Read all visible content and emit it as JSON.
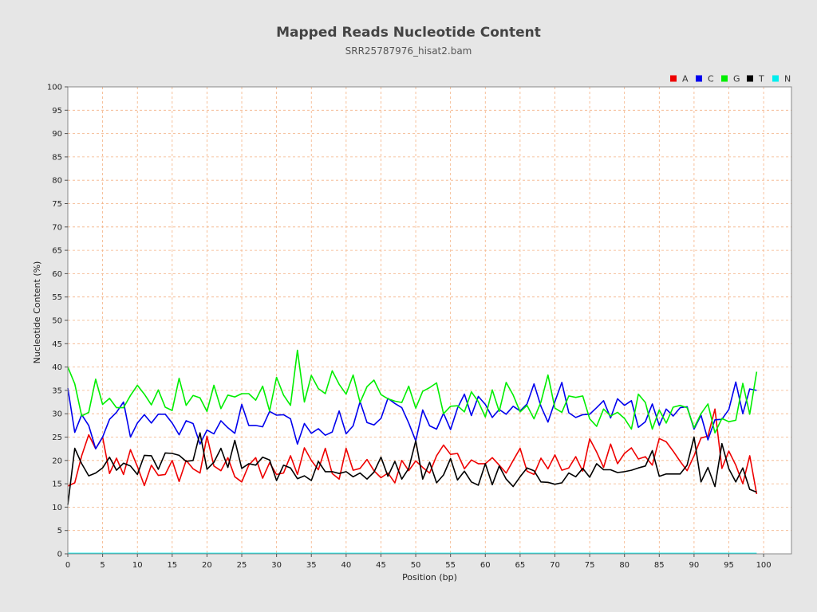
{
  "chart_data": {
    "type": "line",
    "title": "Mapped Reads Nucleotide Content",
    "subtitle": "SRR25787976_hisat2.bam",
    "xlabel": "Position (bp)",
    "ylabel": "Nucleotide Content (%)",
    "xlim": [
      0,
      104
    ],
    "ylim": [
      0,
      100
    ],
    "x_ticks": [
      0,
      5,
      10,
      15,
      20,
      25,
      30,
      35,
      40,
      45,
      50,
      55,
      60,
      65,
      70,
      75,
      80,
      85,
      90,
      95,
      100
    ],
    "y_ticks": [
      0,
      5,
      10,
      15,
      20,
      25,
      30,
      35,
      40,
      45,
      50,
      55,
      60,
      65,
      70,
      75,
      80,
      85,
      90,
      95,
      100
    ],
    "grid": true,
    "legend_position": "top-right",
    "x": [
      0,
      1,
      2,
      3,
      4,
      5,
      6,
      7,
      8,
      9,
      10,
      11,
      12,
      13,
      14,
      15,
      16,
      17,
      18,
      19,
      20,
      21,
      22,
      23,
      24,
      25,
      26,
      27,
      28,
      29,
      30,
      31,
      32,
      33,
      34,
      35,
      36,
      37,
      38,
      39,
      40,
      41,
      42,
      43,
      44,
      45,
      46,
      47,
      48,
      49,
      50,
      51,
      52,
      53,
      54,
      55,
      56,
      57,
      58,
      59,
      60,
      61,
      62,
      63,
      64,
      65,
      66,
      67,
      68,
      69,
      70,
      71,
      72,
      73,
      74,
      75,
      76,
      77,
      78,
      79,
      80,
      81,
      82,
      83,
      84,
      85,
      86,
      87,
      88,
      89,
      90,
      91,
      92,
      93,
      94,
      95,
      96,
      97,
      98,
      99
    ],
    "series": [
      {
        "name": "A",
        "color": "#ee0000",
        "values": [
          14.5,
          15.2,
          21.0,
          25.5,
          22.5,
          25.0,
          17.2,
          20.5,
          17.0,
          22.3,
          18.7,
          14.6,
          19.0,
          16.8,
          17.0,
          20.0,
          15.5,
          20.0,
          18.2,
          17.3,
          25.2,
          18.8,
          17.8,
          20.6,
          16.5,
          15.4,
          19.0,
          20.6,
          16.2,
          19.5,
          17.0,
          17.3,
          21.0,
          17.0,
          22.7,
          20.0,
          18.0,
          22.6,
          17.2,
          16.0,
          22.6,
          17.9,
          18.3,
          20.2,
          17.8,
          16.3,
          17.3,
          15.2,
          20.0,
          17.8,
          19.9,
          18.5,
          17.3,
          21.0,
          23.3,
          21.3,
          21.5,
          18.2,
          20.1,
          19.3,
          19.3,
          20.6,
          19.0,
          17.3,
          20.0,
          22.6,
          17.7,
          17.0,
          20.5,
          18.2,
          21.2,
          17.9,
          18.4,
          20.8,
          17.7,
          24.6,
          21.8,
          18.5,
          23.5,
          19.3,
          21.5,
          22.7,
          20.3,
          20.8,
          19.0,
          24.7,
          24.0,
          22.0,
          19.8,
          17.8,
          21.0,
          24.8,
          25.2,
          31.0,
          18.3,
          22.0,
          19.0,
          15.0,
          21.0,
          12.8
        ]
      },
      {
        "name": "C",
        "color": "#0000ee",
        "values": [
          35.5,
          26.0,
          29.8,
          27.5,
          22.5,
          25.0,
          28.8,
          30.3,
          32.5,
          25.0,
          28.0,
          29.8,
          28.0,
          29.9,
          29.9,
          28.0,
          25.5,
          28.5,
          27.9,
          23.5,
          26.5,
          25.7,
          28.5,
          27.0,
          25.8,
          32.0,
          27.5,
          27.5,
          27.2,
          30.5,
          29.7,
          29.8,
          28.9,
          23.5,
          27.9,
          25.8,
          26.8,
          25.4,
          26.1,
          30.6,
          25.7,
          27.4,
          32.6,
          28.1,
          27.6,
          29.0,
          33.3,
          32.2,
          31.3,
          28.0,
          24.2,
          30.8,
          27.4,
          26.7,
          30.1,
          26.6,
          31.2,
          34.2,
          29.6,
          33.7,
          32.0,
          29.2,
          30.9,
          29.9,
          31.6,
          30.6,
          32.1,
          36.4,
          31.6,
          28.2,
          32.6,
          36.7,
          30.2,
          29.2,
          29.8,
          29.9,
          31.3,
          32.8,
          29.1,
          33.2,
          31.8,
          32.8,
          27.1,
          28.3,
          32.1,
          27.5,
          31.0,
          29.5,
          31.3,
          31.5,
          26.7,
          29.7,
          24.4,
          28.7,
          28.8,
          30.9,
          36.8,
          30.0,
          35.3,
          35.0
        ]
      },
      {
        "name": "G",
        "color": "#00ee00",
        "values": [
          40.0,
          36.4,
          29.5,
          30.3,
          37.4,
          32.0,
          33.3,
          31.3,
          31.3,
          33.9,
          36.1,
          34.2,
          31.9,
          35.1,
          31.4,
          30.7,
          37.6,
          31.8,
          33.9,
          33.4,
          30.5,
          36.1,
          31.1,
          34.0,
          33.6,
          34.3,
          34.3,
          32.9,
          35.9,
          30.6,
          37.8,
          34.0,
          31.8,
          43.6,
          32.5,
          38.2,
          35.4,
          34.3,
          39.2,
          36.3,
          34.2,
          38.3,
          32.4,
          35.8,
          37.2,
          34.1,
          33.2,
          32.7,
          32.4,
          35.9,
          31.2,
          34.8,
          35.6,
          36.6,
          30.0,
          31.6,
          31.7,
          30.4,
          34.7,
          32.6,
          29.3,
          35.1,
          30.5,
          36.7,
          34.0,
          30.4,
          31.8,
          28.9,
          32.5,
          38.3,
          31.2,
          30.3,
          33.8,
          33.5,
          33.8,
          28.9,
          27.3,
          31.0,
          29.5,
          30.3,
          29.0,
          26.7,
          34.2,
          32.4,
          26.7,
          30.8,
          28.0,
          31.4,
          31.8,
          31.3,
          27.0,
          30.0,
          32.1,
          25.9,
          29.0,
          28.3,
          28.6,
          36.5,
          29.9,
          39.0
        ]
      },
      {
        "name": "T",
        "color": "#000000",
        "values": [
          10.5,
          22.6,
          19.3,
          16.7,
          17.3,
          18.4,
          20.7,
          17.9,
          19.4,
          18.8,
          17.0,
          21.1,
          21.0,
          18.1,
          21.6,
          21.5,
          21.1,
          19.8,
          20.0,
          25.9,
          18.1,
          19.6,
          22.6,
          18.5,
          24.3,
          18.3,
          19.3,
          19.0,
          20.7,
          20.1,
          15.7,
          19.0,
          18.4,
          16.1,
          16.7,
          15.7,
          19.8,
          17.6,
          17.6,
          17.2,
          17.6,
          16.5,
          17.3,
          16.0,
          17.5,
          20.7,
          16.6,
          19.8,
          16.0,
          18.3,
          24.2,
          16.0,
          19.6,
          15.2,
          16.9,
          20.4,
          15.8,
          17.7,
          15.4,
          14.7,
          19.3,
          14.8,
          18.8,
          16.0,
          14.4,
          16.5,
          18.4,
          17.8,
          15.4,
          15.3,
          14.9,
          15.2,
          17.3,
          16.5,
          18.3,
          16.4,
          19.3,
          18.0,
          18.0,
          17.4,
          17.6,
          17.9,
          18.4,
          18.8,
          22.1,
          16.6,
          17.1,
          17.1,
          17.1,
          19.0,
          25.0,
          15.4,
          18.5,
          14.4,
          23.6,
          18.2,
          15.4,
          18.4,
          13.8,
          13.2
        ]
      },
      {
        "name": "N",
        "color": "#00eeee",
        "values": [
          0.1,
          0.1,
          0.1,
          0.1,
          0.1,
          0.1,
          0.1,
          0.1,
          0.1,
          0.1,
          0.1,
          0.1,
          0.1,
          0.1,
          0.1,
          0.1,
          0.1,
          0.1,
          0.1,
          0.1,
          0.1,
          0.1,
          0.1,
          0.1,
          0.1,
          0.1,
          0.1,
          0.1,
          0.1,
          0.1,
          0.1,
          0.1,
          0.1,
          0.1,
          0.1,
          0.1,
          0.1,
          0.1,
          0.1,
          0.1,
          0.1,
          0.1,
          0.1,
          0.1,
          0.1,
          0.1,
          0.1,
          0.1,
          0.1,
          0.1,
          0.1,
          0.1,
          0.1,
          0.1,
          0.1,
          0.1,
          0.1,
          0.1,
          0.1,
          0.1,
          0.1,
          0.1,
          0.1,
          0.1,
          0.1,
          0.1,
          0.1,
          0.1,
          0.1,
          0.1,
          0.1,
          0.1,
          0.1,
          0.1,
          0.1,
          0.1,
          0.1,
          0.1,
          0.1,
          0.1,
          0.1,
          0.1,
          0.1,
          0.1,
          0.1,
          0.1,
          0.1,
          0.1,
          0.1,
          0.1,
          0.1,
          0.1,
          0.1,
          0.1,
          0.1,
          0.1,
          0.1,
          0.1,
          0.1,
          0.1
        ]
      }
    ]
  },
  "colors": {
    "background": "#e6e6e6",
    "plot_background": "#ffffff",
    "grid": "#f4b183"
  }
}
